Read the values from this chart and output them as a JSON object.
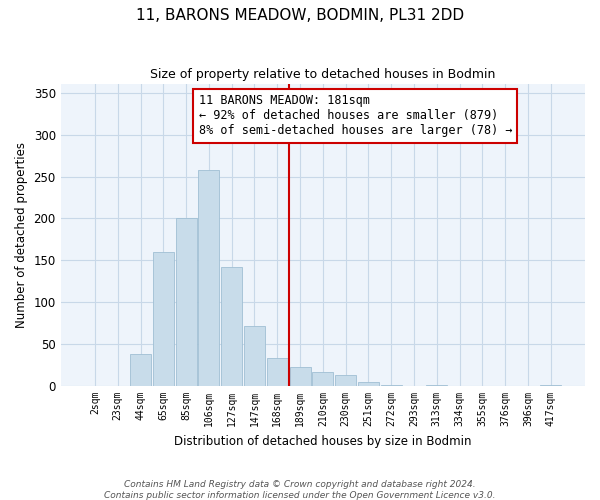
{
  "title": "11, BARONS MEADOW, BODMIN, PL31 2DD",
  "subtitle": "Size of property relative to detached houses in Bodmin",
  "xlabel": "Distribution of detached houses by size in Bodmin",
  "ylabel": "Number of detached properties",
  "bar_labels": [
    "2sqm",
    "23sqm",
    "44sqm",
    "65sqm",
    "85sqm",
    "106sqm",
    "127sqm",
    "147sqm",
    "168sqm",
    "189sqm",
    "210sqm",
    "230sqm",
    "251sqm",
    "272sqm",
    "293sqm",
    "313sqm",
    "334sqm",
    "355sqm",
    "376sqm",
    "396sqm",
    "417sqm"
  ],
  "bar_heights": [
    0,
    0,
    38,
    160,
    200,
    258,
    142,
    72,
    33,
    23,
    17,
    13,
    5,
    1,
    0,
    1,
    0,
    0,
    0,
    0,
    1
  ],
  "bar_color": "#c8dcea",
  "bar_edge_color": "#a0bfd4",
  "vline_x": 8.5,
  "vline_color": "#cc0000",
  "annotation_title": "11 BARONS MEADOW: 181sqm",
  "annotation_line1": "← 92% of detached houses are smaller (879)",
  "annotation_line2": "8% of semi-detached houses are larger (78) →",
  "annotation_box_facecolor": "#ffffff",
  "annotation_box_edgecolor": "#cc0000",
  "ylim": [
    0,
    360
  ],
  "yticks": [
    0,
    50,
    100,
    150,
    200,
    250,
    300,
    350
  ],
  "footer1": "Contains HM Land Registry data © Crown copyright and database right 2024.",
  "footer2": "Contains public sector information licensed under the Open Government Licence v3.0.",
  "grid_color": "#c8d8e8",
  "bg_color": "#ffffff",
  "plot_bg_color": "#eef4fb"
}
